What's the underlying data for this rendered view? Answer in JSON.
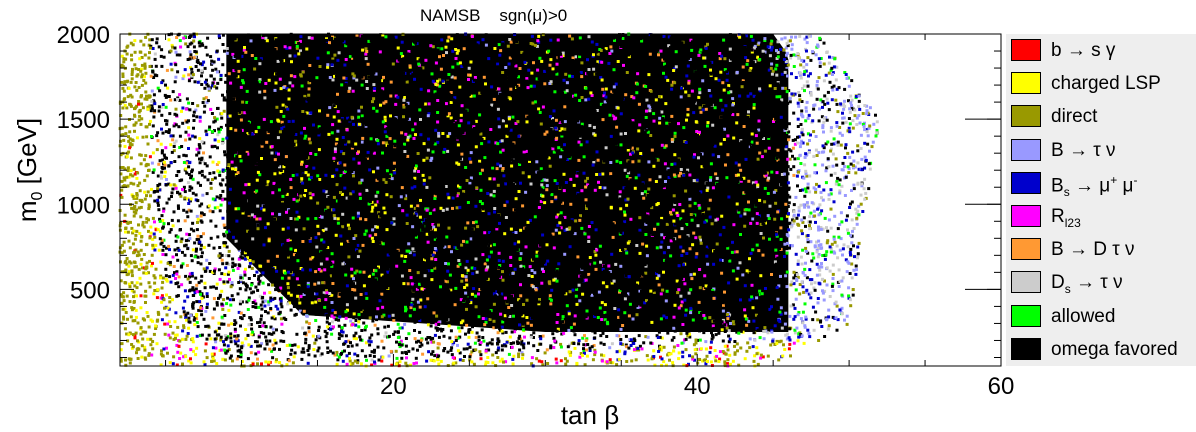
{
  "chart_data": {
    "type": "scatter",
    "title": "NAMSB    sgn(μ)>0",
    "xlabel": "tan β",
    "ylabel": "m0 [GeV]",
    "xlim": [
      2,
      60
    ],
    "ylim": [
      50,
      2000
    ],
    "x_ticks": [
      "20",
      "40",
      "60"
    ],
    "y_ticks": [
      "500",
      "1000",
      "1500",
      "2000"
    ],
    "grid": false,
    "legend_placement": "right",
    "series": [
      {
        "name": "b → s γ",
        "color": "#ff0000"
      },
      {
        "name": "charged LSP",
        "color": "#ffff00"
      },
      {
        "name": "direct",
        "color": "#999900"
      },
      {
        "name": "B → τ ν",
        "color": "#9999ff"
      },
      {
        "name": "Bs → μ+ μ-",
        "color": "#0000cc"
      },
      {
        "name": "Rl23",
        "color": "#ff00ff"
      },
      {
        "name": "B → D τ ν",
        "color": "#ff9933"
      },
      {
        "name": "Ds → τ ν",
        "color": "#cccccc"
      },
      {
        "name": "allowed",
        "color": "#00ff00"
      },
      {
        "name": "omega favored",
        "color": "#000000"
      }
    ]
  }
}
